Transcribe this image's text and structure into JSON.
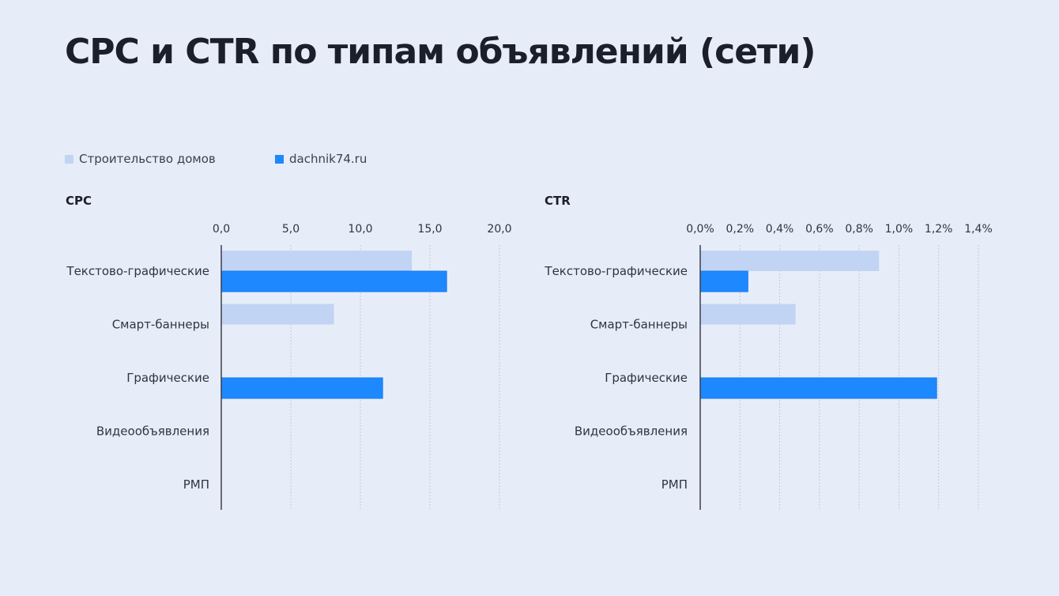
{
  "title": "CPC и CTR по типам объявлений (сети)",
  "legend": [
    {
      "name": "Строительство домов",
      "color": "#c2d4f4"
    },
    {
      "name": "dachnik74.ru",
      "color": "#1e88ff"
    }
  ],
  "chart_data": [
    {
      "type": "bar",
      "orientation": "horizontal",
      "title": "CPC",
      "categories": [
        "Текстово-графические",
        "Смарт-баннеры",
        "Графические",
        "Видеообъявления",
        "РМП"
      ],
      "xlim": [
        0,
        20
      ],
      "ticks": [
        0,
        5,
        10,
        15,
        20
      ],
      "tick_labels": [
        "0,0",
        "5,0",
        "10,0",
        "15,0",
        "20,0"
      ],
      "grid": true,
      "series": [
        {
          "name": "Строительство домов",
          "values": [
            13.7,
            8.1,
            null,
            null,
            null
          ]
        },
        {
          "name": "dachnik74.ru",
          "values": [
            16.2,
            null,
            11.6,
            null,
            null
          ]
        }
      ]
    },
    {
      "type": "bar",
      "orientation": "horizontal",
      "title": "CTR",
      "categories": [
        "Текстово-графические",
        "Смарт-баннеры",
        "Графические",
        "Видеообъявления",
        "РМП"
      ],
      "xlim": [
        0,
        1.4
      ],
      "ticks": [
        0,
        0.2,
        0.4,
        0.6,
        0.8,
        1.0,
        1.2,
        1.4
      ],
      "tick_labels": [
        "0,0%",
        "0,2%",
        "0,4%",
        "0,6%",
        "0,8%",
        "1,0%",
        "1,2%",
        "1,4%"
      ],
      "grid": true,
      "series": [
        {
          "name": "Строительство домов",
          "values": [
            0.9,
            0.48,
            null,
            null,
            null
          ]
        },
        {
          "name": "dachnik74.ru",
          "values": [
            0.24,
            null,
            1.19,
            null,
            null
          ]
        }
      ]
    }
  ]
}
